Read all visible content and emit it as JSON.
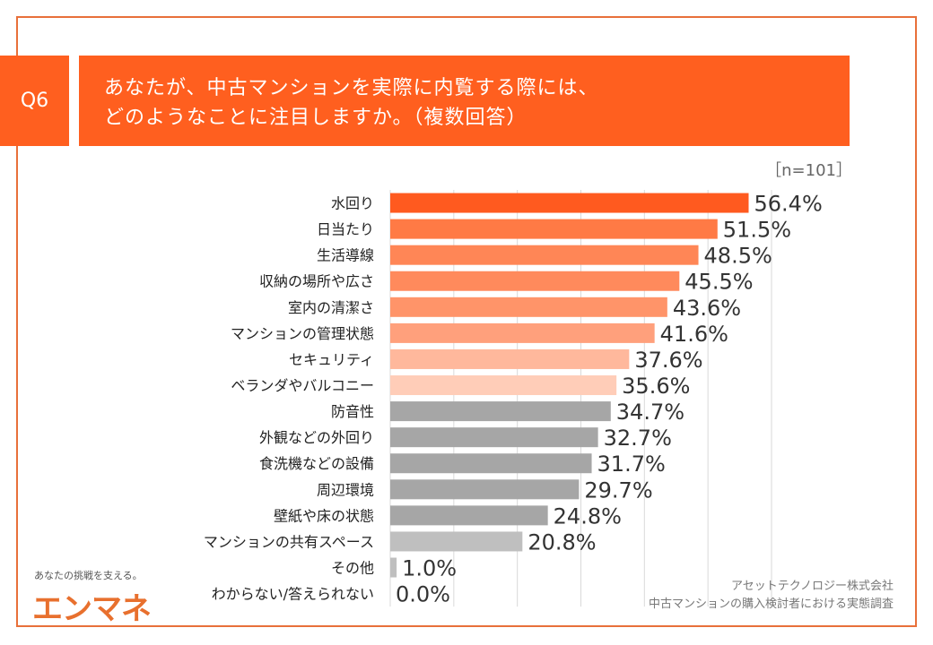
{
  "header": {
    "question_no": "Q6",
    "title_line1": "あなたが、中古マンションを実際に内覧する際には、",
    "title_line2": "どのようなことに注目しますか。（複数回答）",
    "sample": "［n=101］"
  },
  "footer": {
    "source_line1": "アセットテクノロジー株式会社",
    "source_line2": "中古マンションの購入検討者における実態調査",
    "logo_tagline": "あなたの挑戦を支える。",
    "logo": "エンマネ"
  },
  "chart_data": {
    "type": "bar",
    "orientation": "horizontal",
    "xlim": [
      0,
      60
    ],
    "grid": true,
    "categories": [
      "水回り",
      "日当たり",
      "生活導線",
      "収納の場所や広さ",
      "室内の清潔さ",
      "マンションの管理状態",
      "セキュリティ",
      "ベランダやバルコニー",
      "防音性",
      "外観などの外回り",
      "食洗機などの設備",
      "周辺環境",
      "壁紙や床の状態",
      "マンションの共有スペース",
      "その他",
      "わからない/答えられない"
    ],
    "values": [
      56.4,
      51.5,
      48.5,
      45.5,
      43.6,
      41.6,
      37.6,
      35.6,
      34.7,
      32.7,
      31.7,
      29.7,
      24.8,
      20.8,
      1.0,
      0.0
    ],
    "labels": [
      "56.4%",
      "51.5%",
      "48.5%",
      "45.5%",
      "43.6%",
      "41.6%",
      "37.6%",
      "35.6%",
      "34.7%",
      "32.7%",
      "31.7%",
      "29.7%",
      "24.8%",
      "20.8%",
      "1.0%",
      "0.0%"
    ],
    "colors": [
      "#FF5A1F",
      "#FF7A45",
      "#FF8656",
      "#FF8A5C",
      "#FF9469",
      "#FFA07C",
      "#FFB89C",
      "#FFCDB8",
      "#A6A6A6",
      "#A6A6A6",
      "#A6A6A6",
      "#A6A6A6",
      "#A6A6A6",
      "#BFBFBF",
      "#BFBFBF",
      "#BFBFBF"
    ]
  }
}
